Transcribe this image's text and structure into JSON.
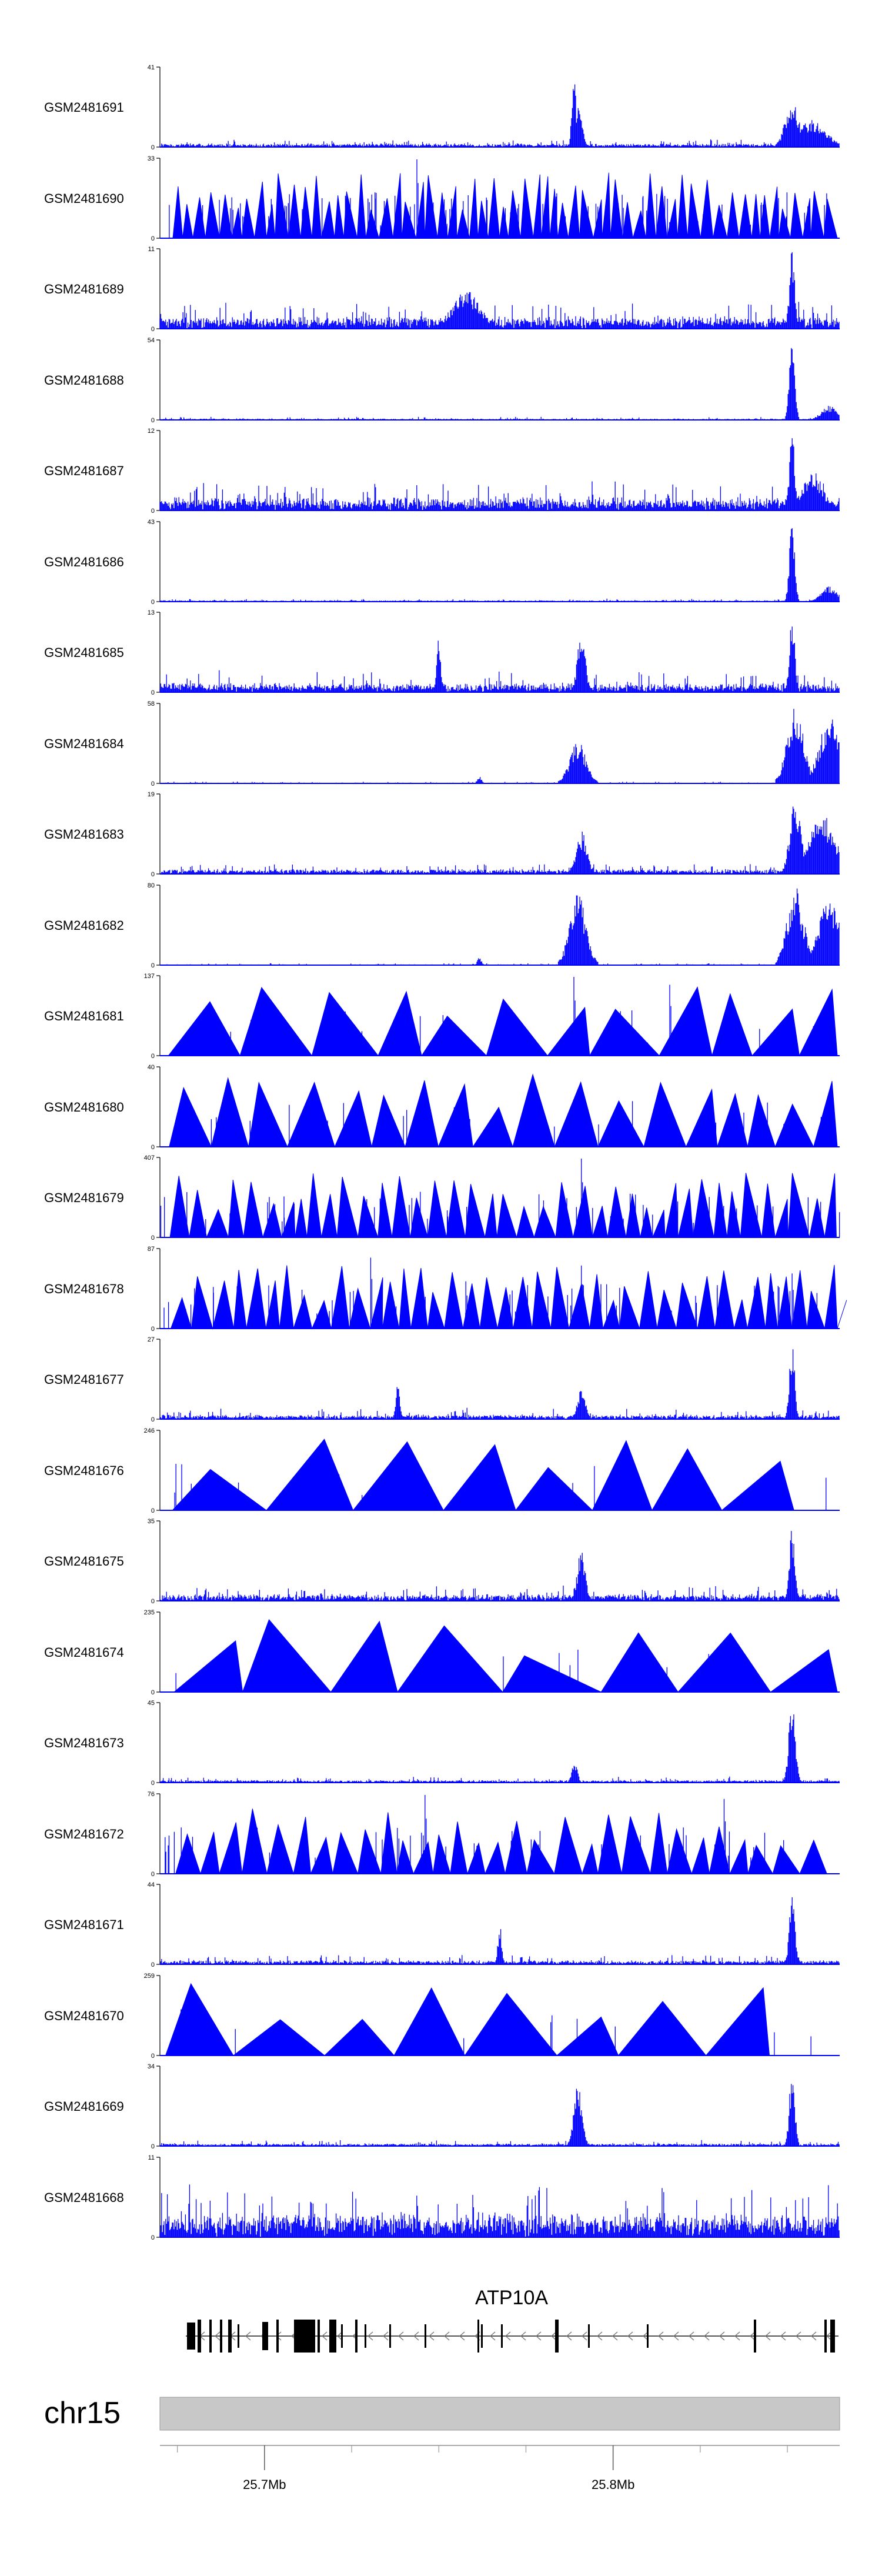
{
  "chart_data": {
    "type": "area",
    "title": "",
    "xlabel": "",
    "ylabel": "",
    "color": "#0000FF",
    "chromosome": "chr15",
    "region_mb": [
      25.67,
      25.865
    ],
    "coordinate_ticks": [
      "25.7Mb",
      "25.8Mb"
    ],
    "gene": {
      "name": "ATP10A",
      "strand": "-"
    },
    "tracks": [
      {
        "name": "GSM2481691",
        "ymax": "41",
        "ymin": "0",
        "style": "dense",
        "base": 0.03,
        "noise": 0.07,
        "peaks": [
          {
            "x": 0.609,
            "h": 1.0,
            "w": 0.003
          },
          {
            "x": 0.617,
            "h": 0.55,
            "w": 0.005
          },
          {
            "x": 0.93,
            "h": 0.6,
            "w": 0.01
          },
          {
            "x": 0.96,
            "h": 0.35,
            "w": 0.02
          }
        ]
      },
      {
        "name": "GSM2481690",
        "ymax": "33",
        "ymin": "0",
        "style": "sparse",
        "n": 60,
        "big": [
          {
            "x": 0.378,
            "h": 1.0
          },
          {
            "x": 0.68,
            "h": 0.55
          }
        ]
      },
      {
        "name": "GSM2481689",
        "ymax": "11",
        "ymin": "0",
        "style": "dense",
        "base": 0.1,
        "noise": 0.25,
        "peaks": [
          {
            "x": 0.93,
            "h": 1.0,
            "w": 0.004
          },
          {
            "x": 0.45,
            "h": 0.5,
            "w": 0.02
          }
        ]
      },
      {
        "name": "GSM2481688",
        "ymax": "54",
        "ymin": "0",
        "style": "dense",
        "base": 0.01,
        "noise": 0.03,
        "peaks": [
          {
            "x": 0.93,
            "h": 1.0,
            "w": 0.004
          },
          {
            "x": 0.985,
            "h": 0.18,
            "w": 0.012
          }
        ]
      },
      {
        "name": "GSM2481687",
        "ymax": "12",
        "ymin": "0",
        "style": "dense",
        "base": 0.1,
        "noise": 0.3,
        "peaks": [
          {
            "x": 0.93,
            "h": 1.0,
            "w": 0.004
          },
          {
            "x": 0.96,
            "h": 0.5,
            "w": 0.015
          }
        ]
      },
      {
        "name": "GSM2481686",
        "ymax": "43",
        "ymin": "0",
        "style": "dense",
        "base": 0.01,
        "noise": 0.03,
        "peaks": [
          {
            "x": 0.93,
            "h": 1.0,
            "w": 0.004
          },
          {
            "x": 0.985,
            "h": 0.2,
            "w": 0.012
          }
        ]
      },
      {
        "name": "GSM2481685",
        "ymax": "13",
        "ymin": "0",
        "style": "dense",
        "base": 0.07,
        "noise": 0.22,
        "peaks": [
          {
            "x": 0.62,
            "h": 0.75,
            "w": 0.006
          },
          {
            "x": 0.93,
            "h": 1.0,
            "w": 0.004
          },
          {
            "x": 0.41,
            "h": 0.7,
            "w": 0.003
          }
        ]
      },
      {
        "name": "GSM2481684",
        "ymax": "58",
        "ymin": "0",
        "style": "dense",
        "base": 0.005,
        "noise": 0.02,
        "peaks": [
          {
            "x": 0.615,
            "h": 0.55,
            "w": 0.012
          },
          {
            "x": 0.935,
            "h": 1.0,
            "w": 0.012
          },
          {
            "x": 0.985,
            "h": 0.85,
            "w": 0.015
          },
          {
            "x": 0.47,
            "h": 0.1,
            "w": 0.003
          }
        ]
      },
      {
        "name": "GSM2481683",
        "ymax": "19",
        "ymin": "0",
        "style": "dense",
        "base": 0.04,
        "noise": 0.1,
        "peaks": [
          {
            "x": 0.62,
            "h": 0.55,
            "w": 0.008
          },
          {
            "x": 0.935,
            "h": 1.0,
            "w": 0.008
          },
          {
            "x": 0.975,
            "h": 0.75,
            "w": 0.02
          }
        ]
      },
      {
        "name": "GSM2481682",
        "ymax": "80",
        "ymin": "0",
        "style": "dense",
        "base": 0.005,
        "noise": 0.02,
        "peaks": [
          {
            "x": 0.615,
            "h": 0.9,
            "w": 0.012
          },
          {
            "x": 0.935,
            "h": 1.0,
            "w": 0.012
          },
          {
            "x": 0.985,
            "h": 0.9,
            "w": 0.015
          },
          {
            "x": 0.47,
            "h": 0.1,
            "w": 0.003
          }
        ]
      },
      {
        "name": "GSM2481681",
        "ymax": "137",
        "ymin": "0",
        "style": "sparse",
        "n": 12,
        "big": [
          {
            "x": 0.609,
            "h": 1.0
          },
          {
            "x": 0.75,
            "h": 0.9
          }
        ]
      },
      {
        "name": "GSM2481680",
        "ymax": "40",
        "ymin": "0",
        "style": "sparse",
        "n": 18,
        "big": []
      },
      {
        "name": "GSM2481679",
        "ymax": "407",
        "ymin": "0",
        "style": "sparse",
        "n": 40,
        "big": [
          {
            "x": 0.62,
            "h": 1.0
          },
          {
            "x": 0.93,
            "h": 0.7
          }
        ]
      },
      {
        "name": "GSM2481678",
        "ymax": "87",
        "ymin": "0",
        "style": "sparse",
        "n": 40,
        "big": [
          {
            "x": 0.31,
            "h": 0.9
          },
          {
            "x": 0.45,
            "h": 0.6
          },
          {
            "x": 0.62,
            "h": 0.8
          },
          {
            "x": 0.93,
            "h": 0.7
          }
        ]
      },
      {
        "name": "GSM2481677",
        "ymax": "27",
        "ymin": "0",
        "style": "dense",
        "base": 0.03,
        "noise": 0.12,
        "peaks": [
          {
            "x": 0.93,
            "h": 1.0,
            "w": 0.004
          },
          {
            "x": 0.35,
            "h": 0.45,
            "w": 0.003
          },
          {
            "x": 0.62,
            "h": 0.4,
            "w": 0.006
          }
        ]
      },
      {
        "name": "GSM2481676",
        "ymax": "246",
        "ymin": "0",
        "style": "sparse",
        "n": 8,
        "big": []
      },
      {
        "name": "GSM2481675",
        "ymax": "35",
        "ymin": "0",
        "style": "dense",
        "base": 0.05,
        "noise": 0.15,
        "peaks": [
          {
            "x": 0.62,
            "h": 0.65,
            "w": 0.006
          },
          {
            "x": 0.93,
            "h": 1.0,
            "w": 0.004
          }
        ]
      },
      {
        "name": "GSM2481674",
        "ymax": "235",
        "ymin": "0",
        "style": "sparse",
        "n": 8,
        "big": []
      },
      {
        "name": "GSM2481673",
        "ymax": "45",
        "ymin": "0",
        "style": "dense",
        "base": 0.02,
        "noise": 0.06,
        "peaks": [
          {
            "x": 0.93,
            "h": 1.0,
            "w": 0.005
          },
          {
            "x": 0.61,
            "h": 0.3,
            "w": 0.004
          }
        ]
      },
      {
        "name": "GSM2481672",
        "ymax": "76",
        "ymin": "0",
        "style": "sparse",
        "n": 30,
        "big": [
          {
            "x": 0.39,
            "h": 1.0
          },
          {
            "x": 0.83,
            "h": 0.95
          }
        ]
      },
      {
        "name": "GSM2481671",
        "ymax": "44",
        "ymin": "0",
        "style": "dense",
        "base": 0.03,
        "noise": 0.1,
        "peaks": [
          {
            "x": 0.93,
            "h": 1.0,
            "w": 0.004
          },
          {
            "x": 0.5,
            "h": 0.5,
            "w": 0.003
          }
        ]
      },
      {
        "name": "GSM2481670",
        "ymax": "259",
        "ymin": "0",
        "style": "sparse",
        "n": 8,
        "big": []
      },
      {
        "name": "GSM2481669",
        "ymax": "34",
        "ymin": "0",
        "style": "dense",
        "base": 0.02,
        "noise": 0.06,
        "peaks": [
          {
            "x": 0.615,
            "h": 0.8,
            "w": 0.006
          },
          {
            "x": 0.93,
            "h": 1.0,
            "w": 0.004
          }
        ]
      },
      {
        "name": "GSM2481668",
        "ymax": "11",
        "ymin": "0",
        "style": "dense",
        "base": 0.2,
        "noise": 0.5,
        "peaks": []
      }
    ]
  }
}
